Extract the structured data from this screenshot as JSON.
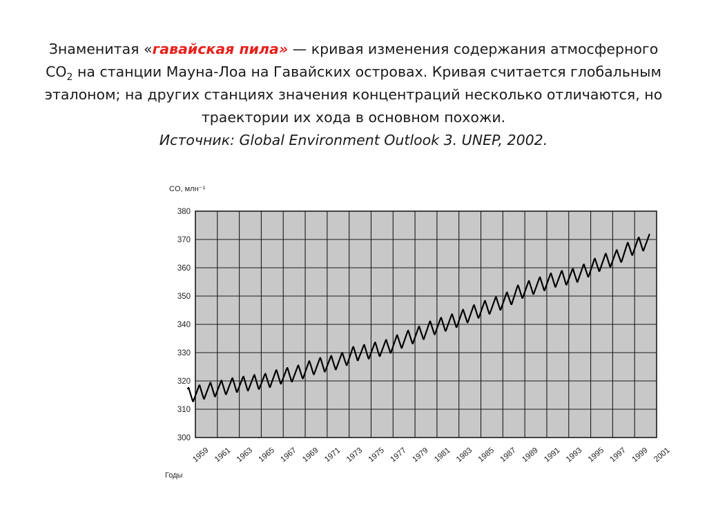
{
  "caption": {
    "text_before": "Знаменитая «",
    "highlight": "гавайская пила»",
    "text_after": " — кривая изменения содержания атмосферного",
    "co2_base": "CO",
    "co2_sub": "2",
    "line2_rest": " на станции Мауна-Лоа на Гавайских островах. Кривая считается глобальным",
    "line3": "эталоном; на других станциях значения концентраций несколько отличаются, но",
    "line4": "траектории их хода в основном похожи.",
    "source": "Источник: Global Environment Outlook 3. UNEP, 2002."
  },
  "colors": {
    "highlight": "#e8201c",
    "plot_background": "#c8c8c8",
    "grid": "#1a1a1a",
    "line": "#000000"
  },
  "chart_data": {
    "type": "line",
    "ylabel": "CO, млн⁻¹",
    "xlabel": "Годы",
    "ylim": [
      300,
      380
    ],
    "xlim": [
      1959,
      2001
    ],
    "yticks": [
      300,
      310,
      320,
      330,
      340,
      350,
      360,
      370,
      380
    ],
    "xticks": [
      "1959",
      "1961",
      "1963",
      "1965",
      "1967",
      "1969",
      "1971",
      "1973",
      "1975",
      "1977",
      "1979",
      "1981",
      "1983",
      "1985",
      "1987",
      "1989",
      "1991",
      "1993",
      "1995",
      "1997",
      "1999",
      "2001"
    ],
    "grid": true,
    "seasonal_amplitude": 2.8,
    "annual_mean": {
      "x": [
        1959,
        1960,
        1961,
        1962,
        1963,
        1964,
        1965,
        1966,
        1967,
        1968,
        1969,
        1970,
        1971,
        1972,
        1973,
        1974,
        1975,
        1976,
        1977,
        1978,
        1979,
        1980,
        1981,
        1982,
        1983,
        1984,
        1985,
        1986,
        1987,
        1988,
        1989,
        1990,
        1991,
        1992,
        1993,
        1994,
        1995,
        1996,
        1997,
        1998,
        1999,
        2000
      ],
      "y": [
        316.0,
        316.9,
        317.6,
        318.5,
        319.0,
        319.6,
        320.0,
        321.4,
        322.1,
        323.0,
        324.6,
        325.7,
        326.3,
        327.5,
        329.7,
        330.2,
        331.1,
        332.0,
        333.8,
        335.4,
        336.8,
        338.7,
        339.9,
        341.1,
        342.8,
        344.4,
        345.9,
        347.2,
        348.9,
        351.5,
        352.9,
        354.2,
        355.6,
        356.4,
        357.1,
        358.8,
        360.9,
        362.6,
        363.8,
        366.6,
        368.3,
        369.4
      ]
    }
  }
}
